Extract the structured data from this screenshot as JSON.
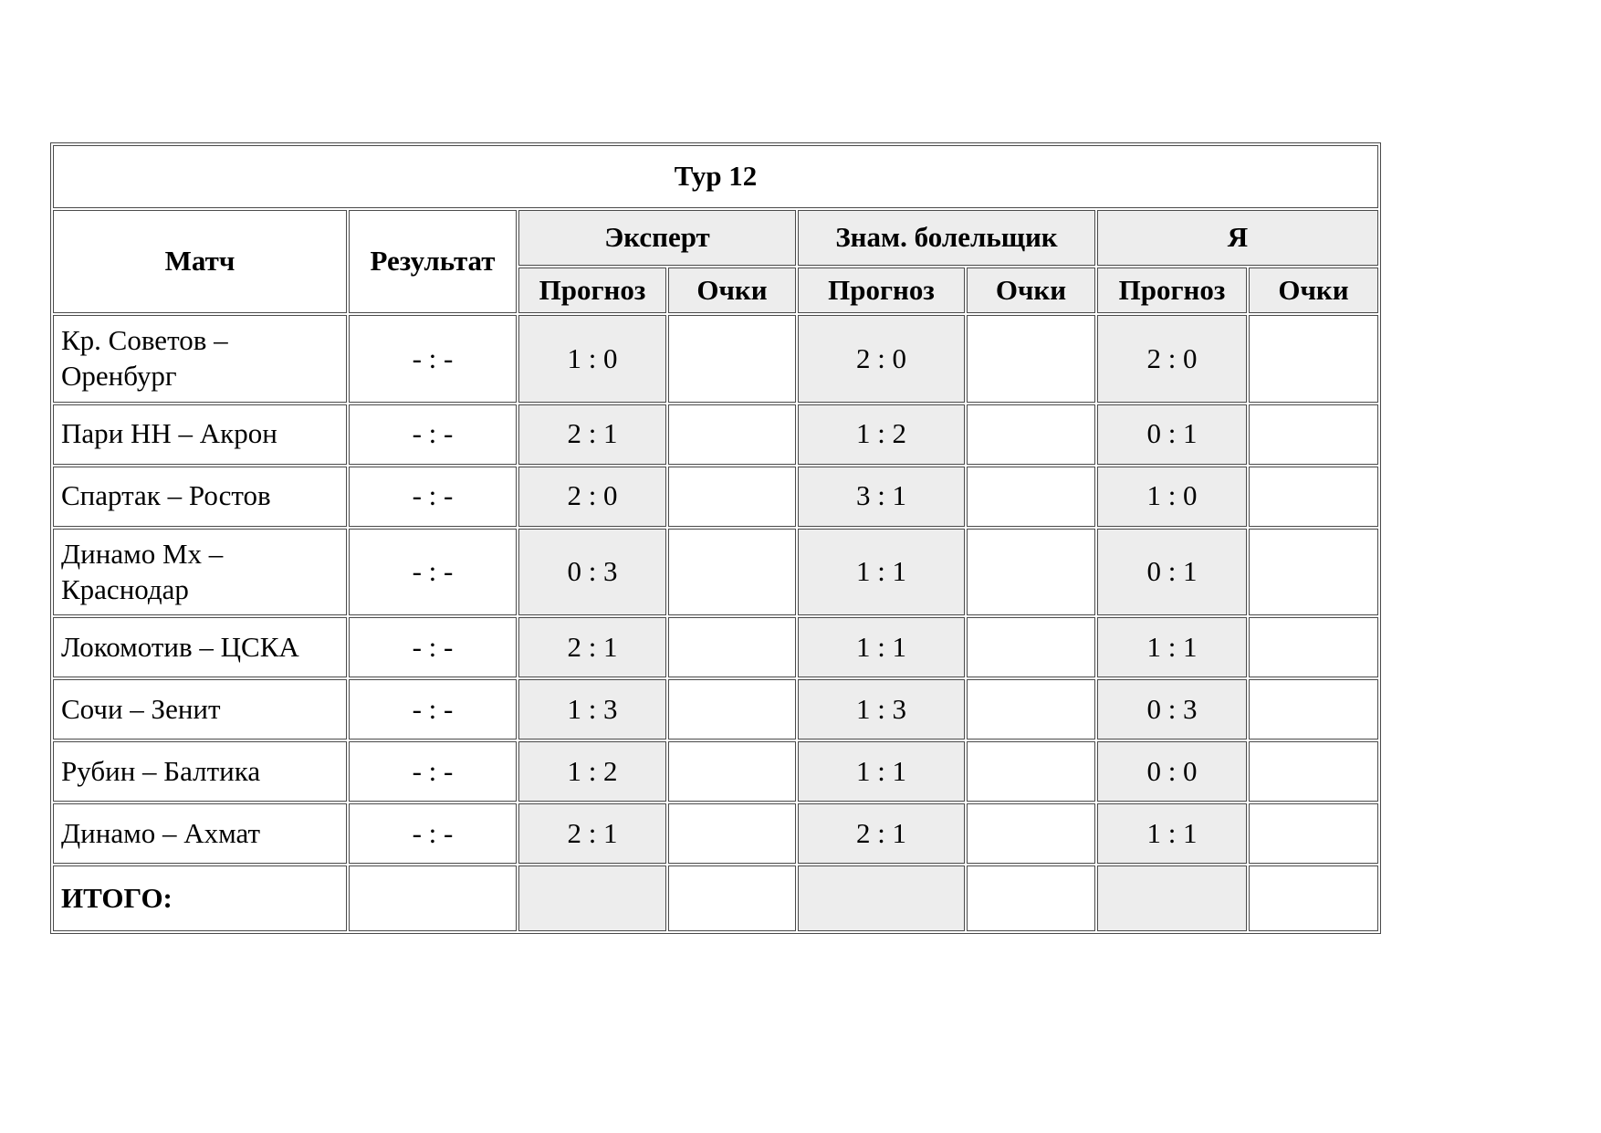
{
  "colors": {
    "shade_bg": "#ededed",
    "border": "#4a4a4a",
    "page_bg": "#ffffff"
  },
  "table": {
    "title": "Тур 12",
    "headers": {
      "match": "Матч",
      "result": "Результат",
      "groups": [
        {
          "label": "Эксперт"
        },
        {
          "label": "Знам. болельщик"
        },
        {
          "label": "Я"
        }
      ],
      "forecast": "Прогноз",
      "points": "Очки"
    },
    "rows": [
      {
        "match": "Кр. Советов – Оренбург",
        "result": "- : -",
        "expert_forecast": "1 : 0",
        "expert_points": "",
        "fan_forecast": "2 : 0",
        "fan_points": "",
        "me_forecast": "2 : 0",
        "me_points": ""
      },
      {
        "match": "Пари НН – Акрон",
        "result": "- : -",
        "expert_forecast": "2 : 1",
        "expert_points": "",
        "fan_forecast": "1 : 2",
        "fan_points": "",
        "me_forecast": "0 : 1",
        "me_points": ""
      },
      {
        "match": "Спартак – Ростов",
        "result": "- : -",
        "expert_forecast": "2 : 0",
        "expert_points": "",
        "fan_forecast": "3 : 1",
        "fan_points": "",
        "me_forecast": "1 : 0",
        "me_points": ""
      },
      {
        "match": "Динамо Мх – Краснодар",
        "result": "- : -",
        "expert_forecast": "0 : 3",
        "expert_points": "",
        "fan_forecast": "1 : 1",
        "fan_points": "",
        "me_forecast": "0 : 1",
        "me_points": ""
      },
      {
        "match": "Локомотив – ЦСКА",
        "result": "- : -",
        "expert_forecast": "2 : 1",
        "expert_points": "",
        "fan_forecast": "1 : 1",
        "fan_points": "",
        "me_forecast": "1 : 1",
        "me_points": ""
      },
      {
        "match": "Сочи – Зенит",
        "result": "- : -",
        "expert_forecast": "1 : 3",
        "expert_points": "",
        "fan_forecast": "1 : 3",
        "fan_points": "",
        "me_forecast": "0 : 3",
        "me_points": ""
      },
      {
        "match": "Рубин – Балтика",
        "result": "- : -",
        "expert_forecast": "1 : 2",
        "expert_points": "",
        "fan_forecast": "1 : 1",
        "fan_points": "",
        "me_forecast": "0 : 0",
        "me_points": ""
      },
      {
        "match": "Динамо – Ахмат",
        "result": "- : -",
        "expert_forecast": "2 : 1",
        "expert_points": "",
        "fan_forecast": "2 : 1",
        "fan_points": "",
        "me_forecast": "1 : 1",
        "me_points": ""
      }
    ],
    "total_label": "ИТОГО:"
  }
}
